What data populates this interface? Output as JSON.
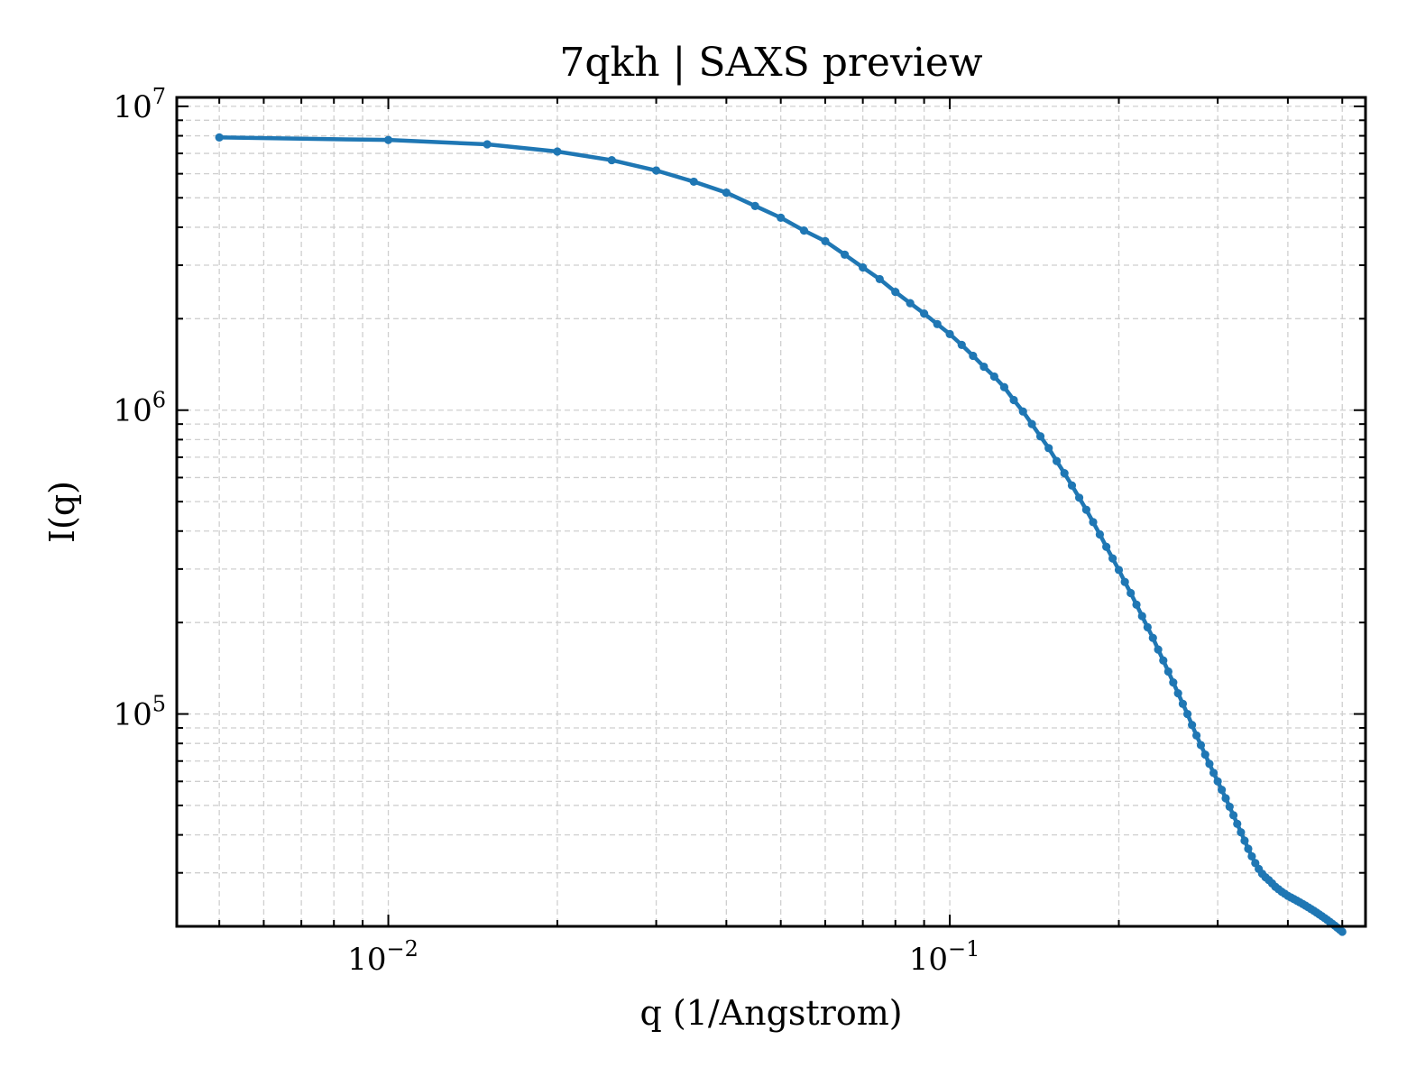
{
  "chart_data": {
    "type": "line",
    "title": "7qkh | SAXS preview",
    "xlabel": "q (1/Angstrom)",
    "ylabel": "I(q)",
    "xscale": "log",
    "yscale": "log",
    "xlim": [
      0.0042,
      0.55
    ],
    "ylim": [
      20000,
      10700000
    ],
    "grid": true,
    "legend": "none",
    "x_ticks": [
      {
        "value": 0.01,
        "base": "10",
        "exp": "−2"
      },
      {
        "value": 0.1,
        "base": "10",
        "exp": "−1"
      }
    ],
    "y_ticks": [
      {
        "value": 100000,
        "base": "10",
        "exp": "5"
      },
      {
        "value": 1000000,
        "base": "10",
        "exp": "6"
      },
      {
        "value": 10000000,
        "base": "10",
        "exp": "7"
      }
    ],
    "series": [
      {
        "color": "#1f77b4",
        "x": [
          0.005,
          0.01,
          0.015,
          0.02,
          0.025,
          0.03,
          0.035,
          0.04,
          0.045,
          0.05,
          0.055,
          0.06,
          0.065,
          0.07,
          0.075,
          0.08,
          0.085,
          0.09,
          0.095,
          0.1,
          0.105,
          0.11,
          0.115,
          0.12,
          0.125,
          0.13,
          0.135,
          0.14,
          0.145,
          0.15,
          0.155,
          0.16,
          0.165,
          0.17,
          0.175,
          0.18,
          0.185,
          0.19,
          0.195,
          0.2,
          0.205,
          0.21,
          0.215,
          0.22,
          0.225,
          0.23,
          0.235,
          0.24,
          0.245,
          0.25,
          0.255,
          0.26,
          0.265,
          0.27,
          0.275,
          0.28,
          0.285,
          0.29,
          0.295,
          0.3,
          0.305,
          0.31,
          0.315,
          0.32,
          0.325,
          0.33,
          0.335,
          0.34,
          0.345,
          0.35,
          0.355,
          0.36,
          0.365,
          0.37,
          0.375,
          0.38,
          0.385,
          0.39,
          0.395,
          0.4,
          0.405,
          0.41,
          0.415,
          0.42,
          0.425,
          0.43,
          0.435,
          0.44,
          0.445,
          0.45,
          0.455,
          0.46,
          0.465,
          0.47,
          0.475,
          0.48,
          0.485,
          0.49,
          0.495,
          0.5
        ],
        "y": [
          7900000,
          7750000,
          7500000,
          7100000,
          6650000,
          6150000,
          5650000,
          5200000,
          4700000,
          4300000,
          3900000,
          3600000,
          3250000,
          2950000,
          2700000,
          2450000,
          2250000,
          2080000,
          1920000,
          1780000,
          1640000,
          1510000,
          1390000,
          1290000,
          1190000,
          1080000,
          990000,
          900000,
          820000,
          750000,
          680000,
          620000,
          565000,
          515000,
          470000,
          428000,
          390000,
          355000,
          325000,
          298000,
          272000,
          250000,
          229000,
          210000,
          193000,
          178000,
          163000,
          150000,
          138000,
          127000,
          117000,
          108000,
          100000,
          92000,
          85000,
          79000,
          73500,
          68500,
          64000,
          60000,
          56300,
          52800,
          49500,
          46400,
          43500,
          40800,
          38300,
          36000,
          34000,
          32300,
          30900,
          29800,
          29000,
          28400,
          27700,
          27000,
          26500,
          26000,
          25600,
          25200,
          24900,
          24600,
          24300,
          24000,
          23700,
          23400,
          23100,
          22800,
          22500,
          22200,
          21900,
          21600,
          21300,
          21000,
          20700,
          20400,
          20100,
          19800,
          19500,
          19200
        ]
      }
    ]
  }
}
